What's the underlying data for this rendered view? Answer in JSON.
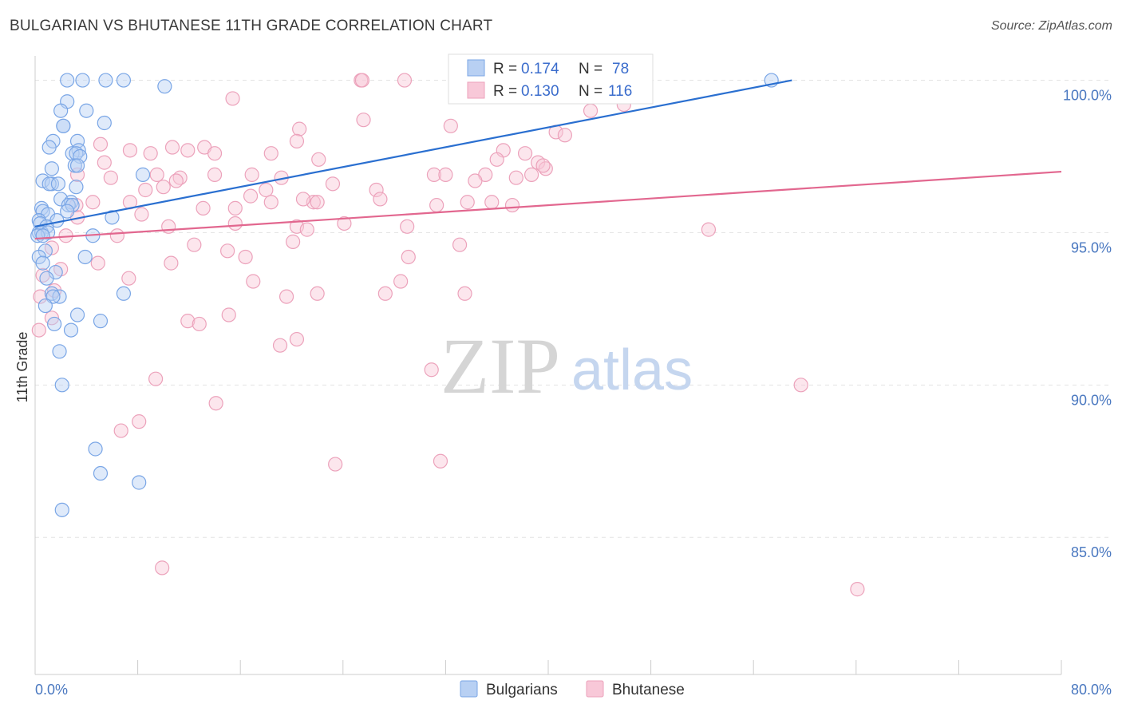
{
  "chart_data": {
    "type": "scatter",
    "title": "BULGARIAN VS BHUTANESE 11TH GRADE CORRELATION CHART",
    "source": "Source: ZipAtlas.com",
    "xlabel": "",
    "ylabel": "11th Grade",
    "xlim": [
      0,
      80
    ],
    "ylim": [
      80.5,
      100.8
    ],
    "x_tick_labels": [
      "0.0%",
      "80.0%"
    ],
    "y_ticks": [
      85,
      90,
      95,
      100
    ],
    "y_tick_labels": [
      "85.0%",
      "90.0%",
      "95.0%",
      "100.0%"
    ],
    "watermark": {
      "zip": "ZIP",
      "atlas": "atlas"
    },
    "legend_top": [
      {
        "r_label": "R =",
        "r_value": "0.174",
        "n_label": "N =",
        "n_value": "78"
      },
      {
        "r_label": "R =",
        "r_value": "0.130",
        "n_label": "N =",
        "n_value": "116"
      }
    ],
    "series": [
      {
        "name": "Bulgarians",
        "color": "#7aa6e6",
        "fill": "#b8d0f3",
        "line_color": "#2a6fd0",
        "trend": {
          "x0": 0,
          "y0": 95.2,
          "x1": 59,
          "y1": 100.0
        },
        "points": [
          [
            2.5,
            100
          ],
          [
            3.7,
            100
          ],
          [
            5.5,
            100
          ],
          [
            6.9,
            100
          ],
          [
            10.1,
            99.8
          ],
          [
            57.4,
            100
          ],
          [
            2.5,
            99.3
          ],
          [
            2.0,
            99.0
          ],
          [
            4.0,
            99.0
          ],
          [
            2.2,
            98.5
          ],
          [
            2.2,
            98.5
          ],
          [
            5.4,
            98.6
          ],
          [
            1.4,
            98.0
          ],
          [
            3.3,
            98.0
          ],
          [
            1.1,
            97.8
          ],
          [
            3.4,
            97.7
          ],
          [
            2.9,
            97.6
          ],
          [
            3.2,
            97.6
          ],
          [
            3.5,
            97.5
          ],
          [
            3.1,
            97.2
          ],
          [
            1.3,
            97.1
          ],
          [
            3.3,
            97.2
          ],
          [
            8.4,
            96.9
          ],
          [
            0.6,
            96.7
          ],
          [
            1.3,
            96.6
          ],
          [
            1.1,
            96.6
          ],
          [
            1.8,
            96.6
          ],
          [
            3.2,
            96.5
          ],
          [
            2.0,
            96.1
          ],
          [
            2.8,
            96.0
          ],
          [
            2.6,
            95.9
          ],
          [
            2.9,
            95.9
          ],
          [
            0.5,
            95.8
          ],
          [
            0.6,
            95.7
          ],
          [
            1.0,
            95.6
          ],
          [
            2.5,
            95.7
          ],
          [
            6.0,
            95.5
          ],
          [
            0.3,
            95.4
          ],
          [
            1.7,
            95.4
          ],
          [
            0.4,
            95.3
          ],
          [
            0.9,
            95.2
          ],
          [
            0.3,
            95.0
          ],
          [
            0.5,
            95.0
          ],
          [
            1.0,
            95.0
          ],
          [
            0.2,
            94.9
          ],
          [
            0.6,
            94.9
          ],
          [
            4.5,
            94.9
          ],
          [
            0.8,
            94.4
          ],
          [
            0.3,
            94.2
          ],
          [
            3.9,
            94.2
          ],
          [
            0.6,
            94.0
          ],
          [
            1.6,
            93.7
          ],
          [
            0.9,
            93.5
          ],
          [
            6.9,
            93.0
          ],
          [
            1.3,
            93.0
          ],
          [
            1.9,
            92.9
          ],
          [
            1.4,
            92.9
          ],
          [
            0.8,
            92.6
          ],
          [
            3.3,
            92.3
          ],
          [
            5.1,
            92.1
          ],
          [
            1.5,
            92.0
          ],
          [
            2.8,
            91.8
          ],
          [
            1.9,
            91.1
          ],
          [
            2.1,
            90.0
          ],
          [
            4.7,
            87.9
          ],
          [
            5.1,
            87.1
          ],
          [
            8.1,
            86.8
          ],
          [
            2.1,
            85.9
          ]
        ]
      },
      {
        "name": "Bhutanese",
        "color": "#eca2bb",
        "fill": "#f8c8d8",
        "line_color": "#e2678f",
        "trend": {
          "x0": 0,
          "y0": 94.8,
          "x1": 80,
          "y1": 97.0
        },
        "points": [
          [
            25.4,
            100
          ],
          [
            28.8,
            100
          ],
          [
            25.5,
            100
          ],
          [
            44.9,
            99.9
          ],
          [
            15.4,
            99.4
          ],
          [
            45.9,
            99.2
          ],
          [
            45.8,
            99.5
          ],
          [
            43.3,
            99.0
          ],
          [
            32.4,
            98.5
          ],
          [
            25.6,
            98.7
          ],
          [
            20.6,
            98.4
          ],
          [
            40.6,
            98.3
          ],
          [
            41.3,
            98.2
          ],
          [
            20.4,
            98.0
          ],
          [
            5.1,
            97.9
          ],
          [
            10.7,
            97.8
          ],
          [
            13.2,
            97.8
          ],
          [
            7.4,
            97.7
          ],
          [
            11.9,
            97.7
          ],
          [
            9.0,
            97.6
          ],
          [
            14.0,
            97.6
          ],
          [
            18.4,
            97.6
          ],
          [
            36.5,
            97.7
          ],
          [
            38.2,
            97.6
          ],
          [
            36.0,
            97.4
          ],
          [
            5.4,
            97.3
          ],
          [
            22.1,
            97.4
          ],
          [
            39.2,
            97.3
          ],
          [
            39.8,
            97.1
          ],
          [
            39.6,
            97.2
          ],
          [
            14.0,
            96.9
          ],
          [
            16.9,
            96.9
          ],
          [
            9.5,
            96.9
          ],
          [
            35.1,
            96.9
          ],
          [
            38.7,
            96.9
          ],
          [
            31.1,
            96.9
          ],
          [
            32.0,
            96.9
          ],
          [
            37.5,
            96.8
          ],
          [
            19.2,
            96.8
          ],
          [
            34.3,
            96.7
          ],
          [
            11.3,
            96.8
          ],
          [
            5.9,
            96.8
          ],
          [
            11.0,
            96.7
          ],
          [
            3.3,
            96.9
          ],
          [
            23.2,
            96.6
          ],
          [
            18.0,
            96.4
          ],
          [
            26.6,
            96.4
          ],
          [
            16.8,
            96.2
          ],
          [
            10.0,
            96.5
          ],
          [
            8.6,
            96.4
          ],
          [
            26.9,
            96.1
          ],
          [
            21.7,
            96.0
          ],
          [
            22.0,
            96.0
          ],
          [
            7.4,
            96.0
          ],
          [
            20.9,
            96.1
          ],
          [
            18.4,
            96.0
          ],
          [
            33.7,
            96.0
          ],
          [
            35.6,
            96.0
          ],
          [
            37.2,
            95.9
          ],
          [
            31.3,
            95.9
          ],
          [
            13.1,
            95.8
          ],
          [
            4.5,
            96.0
          ],
          [
            15.6,
            95.8
          ],
          [
            3.2,
            95.9
          ],
          [
            8.3,
            95.6
          ],
          [
            3.3,
            95.5
          ],
          [
            20.4,
            95.2
          ],
          [
            10.4,
            95.2
          ],
          [
            15.6,
            95.3
          ],
          [
            24.1,
            95.3
          ],
          [
            29.0,
            95.2
          ],
          [
            21.2,
            95.1
          ],
          [
            52.5,
            95.1
          ],
          [
            6.4,
            94.9
          ],
          [
            2.4,
            94.9
          ],
          [
            1.3,
            94.5
          ],
          [
            20.1,
            94.7
          ],
          [
            12.4,
            94.6
          ],
          [
            33.1,
            94.6
          ],
          [
            15.0,
            94.4
          ],
          [
            16.4,
            94.2
          ],
          [
            29.1,
            94.2
          ],
          [
            10.6,
            94.0
          ],
          [
            4.9,
            94.0
          ],
          [
            2.0,
            93.8
          ],
          [
            0.6,
            93.6
          ],
          [
            7.3,
            93.5
          ],
          [
            17.0,
            93.4
          ],
          [
            28.5,
            93.4
          ],
          [
            1.5,
            93.1
          ],
          [
            22.0,
            93.0
          ],
          [
            33.5,
            93.0
          ],
          [
            27.3,
            93.0
          ],
          [
            19.6,
            92.9
          ],
          [
            0.4,
            92.9
          ],
          [
            15.1,
            92.3
          ],
          [
            1.3,
            92.2
          ],
          [
            11.9,
            92.1
          ],
          [
            12.8,
            92.0
          ],
          [
            0.3,
            91.8
          ],
          [
            20.4,
            91.5
          ],
          [
            19.1,
            91.3
          ],
          [
            30.9,
            90.5
          ],
          [
            9.4,
            90.2
          ],
          [
            59.7,
            90.0
          ],
          [
            14.1,
            89.4
          ],
          [
            8.1,
            88.8
          ],
          [
            6.7,
            88.5
          ],
          [
            23.4,
            87.4
          ],
          [
            31.6,
            87.5
          ],
          [
            9.9,
            84.0
          ],
          [
            64.1,
            83.3
          ]
        ]
      }
    ]
  },
  "legend_bottom": [
    {
      "label": "Bulgarians",
      "color": "#b8d0f3",
      "border": "#7aa6e6"
    },
    {
      "label": "Bhutanese",
      "color": "#f8c8d8",
      "border": "#eca2bb"
    }
  ]
}
